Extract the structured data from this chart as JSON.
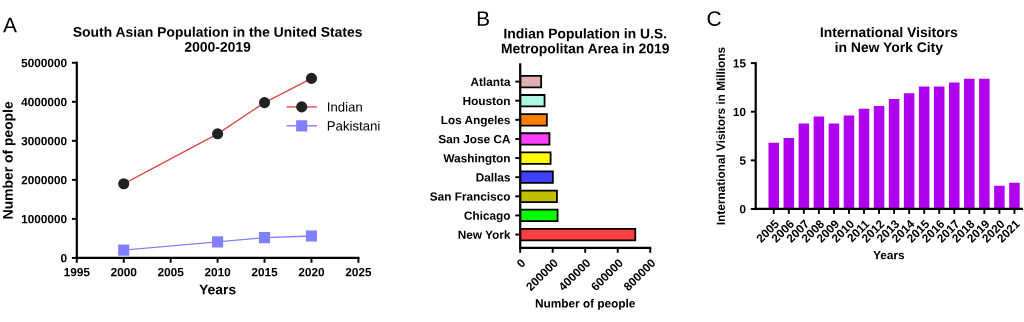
{
  "chart_data": [
    {
      "type": "line",
      "title": "South Asian Population in the United States\n2000-2019",
      "xlabel": "Years",
      "ylabel": "Number of people",
      "annotations": [
        "A"
      ],
      "x": [
        2000,
        2010,
        2015,
        2020
      ],
      "series": [
        {
          "name": "Indian",
          "color": "#e04848",
          "marker": "circle",
          "values": [
            1900000,
            3180000,
            3980000,
            4600000
          ]
        },
        {
          "name": "Pakistani",
          "color": "#8080ff",
          "marker": "square",
          "values": [
            200000,
            410000,
            520000,
            560000
          ]
        }
      ],
      "xlim": [
        1995,
        2025
      ],
      "xticks": [
        1995,
        2000,
        2005,
        2010,
        2015,
        2020,
        2025
      ],
      "ylim": [
        0,
        5000000
      ],
      "yticks": [
        0,
        1000000,
        2000000,
        3000000,
        4000000,
        5000000
      ],
      "grid": false,
      "legend": "top right"
    },
    {
      "type": "bar",
      "orientation": "horizontal",
      "title": "Indian Population in U.S.\nMetropolitan Area in 2019",
      "xlabel": "Number of people",
      "annotations": [
        "B"
      ],
      "categories": [
        "Atlanta",
        "Houston",
        "Los Angeles",
        "San Jose CA",
        "Washington",
        "Dallas",
        "San Francisco",
        "Chicago",
        "New York"
      ],
      "values": [
        129000,
        150000,
        164000,
        180000,
        187000,
        201000,
        226000,
        230000,
        708000
      ],
      "colors": [
        "#e0b0b0",
        "#b0f5e5",
        "#ff8000",
        "#ff40ff",
        "#ffff00",
        "#4040ff",
        "#c0c000",
        "#00ff00",
        "#ff4040"
      ],
      "xlim": [
        0,
        800000
      ],
      "xticks": [
        0,
        200000,
        400000,
        600000,
        800000
      ],
      "grid": false,
      "legend": false
    },
    {
      "type": "bar",
      "title": "International Visitors\nin New York City",
      "xlabel": "Years",
      "ylabel": "International Visitors in Millions",
      "annotations": [
        "C"
      ],
      "categories": [
        "2005",
        "2006",
        "2007",
        "2008",
        "2009",
        "2010",
        "2011",
        "2012",
        "2013",
        "2014",
        "2015",
        "2016",
        "2017",
        "2018",
        "2019",
        "2020",
        "2021"
      ],
      "values": [
        6.8,
        7.3,
        8.8,
        9.5,
        8.8,
        9.6,
        10.3,
        10.6,
        11.3,
        11.9,
        12.6,
        12.6,
        13.0,
        13.4,
        13.4,
        2.4,
        2.7
      ],
      "color": "#b000f0",
      "ylim": [
        0,
        15
      ],
      "yticks": [
        0,
        5,
        10,
        15
      ],
      "grid": false,
      "legend": false
    }
  ]
}
